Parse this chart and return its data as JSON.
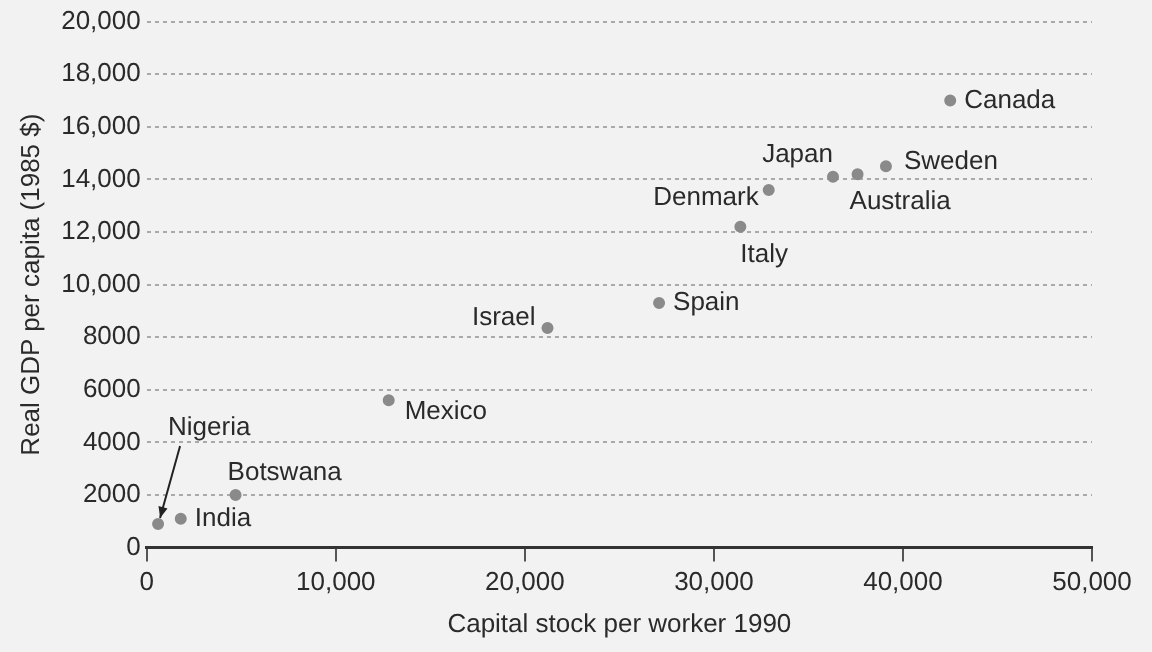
{
  "chart_data": {
    "type": "scatter",
    "xlabel": "Capital stock per worker 1990",
    "ylabel": "Real GDP per capita (1985 $)",
    "series": [
      {
        "color": "#8a8a8a",
        "x": [
          600,
          1800,
          4700,
          12800,
          21200,
          27100,
          31400,
          32900,
          36300,
          37600,
          39100,
          42500
        ],
        "values": [
          900,
          1100,
          2000,
          5600,
          8350,
          9300,
          12200,
          13600,
          14100,
          14200,
          14500,
          17000
        ]
      }
    ],
    "annotations": [
      {
        "text": "Nigeria",
        "x": 600,
        "y": 900
      },
      {
        "text": "India",
        "x": 1800,
        "y": 1100
      },
      {
        "text": "Botswana",
        "x": 4700,
        "y": 2000
      },
      {
        "text": "Mexico",
        "x": 12800,
        "y": 5600
      },
      {
        "text": "Israel",
        "x": 21200,
        "y": 8350
      },
      {
        "text": "Spain",
        "x": 27100,
        "y": 9300
      },
      {
        "text": "Italy",
        "x": 31400,
        "y": 12200
      },
      {
        "text": "Denmark",
        "x": 32900,
        "y": 13600
      },
      {
        "text": "Japan",
        "x": 36300,
        "y": 14100
      },
      {
        "text": "Australia",
        "x": 37600,
        "y": 14200
      },
      {
        "text": "Sweden",
        "x": 39100,
        "y": 14500
      },
      {
        "text": "Canada",
        "x": 42500,
        "y": 17000
      }
    ],
    "xlim": [
      0,
      50000
    ],
    "xticks": [
      0,
      {
        "value": 10000,
        "label": "10,000"
      },
      {
        "value": 20000,
        "label": "20,000"
      },
      {
        "value": 30000,
        "label": "30,000"
      },
      {
        "value": 40000,
        "label": "40,000"
      },
      {
        "value": 50000,
        "label": "50,000"
      }
    ],
    "ylim": [
      0,
      20000
    ],
    "yticks": [
      0,
      2000,
      4000,
      6000,
      8000,
      {
        "value": 10000,
        "label": "10,000"
      },
      {
        "value": 12000,
        "label": "12,000"
      },
      {
        "value": 14000,
        "label": "14,000"
      },
      {
        "value": 16000,
        "label": "16,000"
      },
      {
        "value": 18000,
        "label": "18,000"
      },
      {
        "value": 20000,
        "label": "20,000"
      }
    ],
    "grid": "y",
    "marker": "circle",
    "legend": false
  }
}
